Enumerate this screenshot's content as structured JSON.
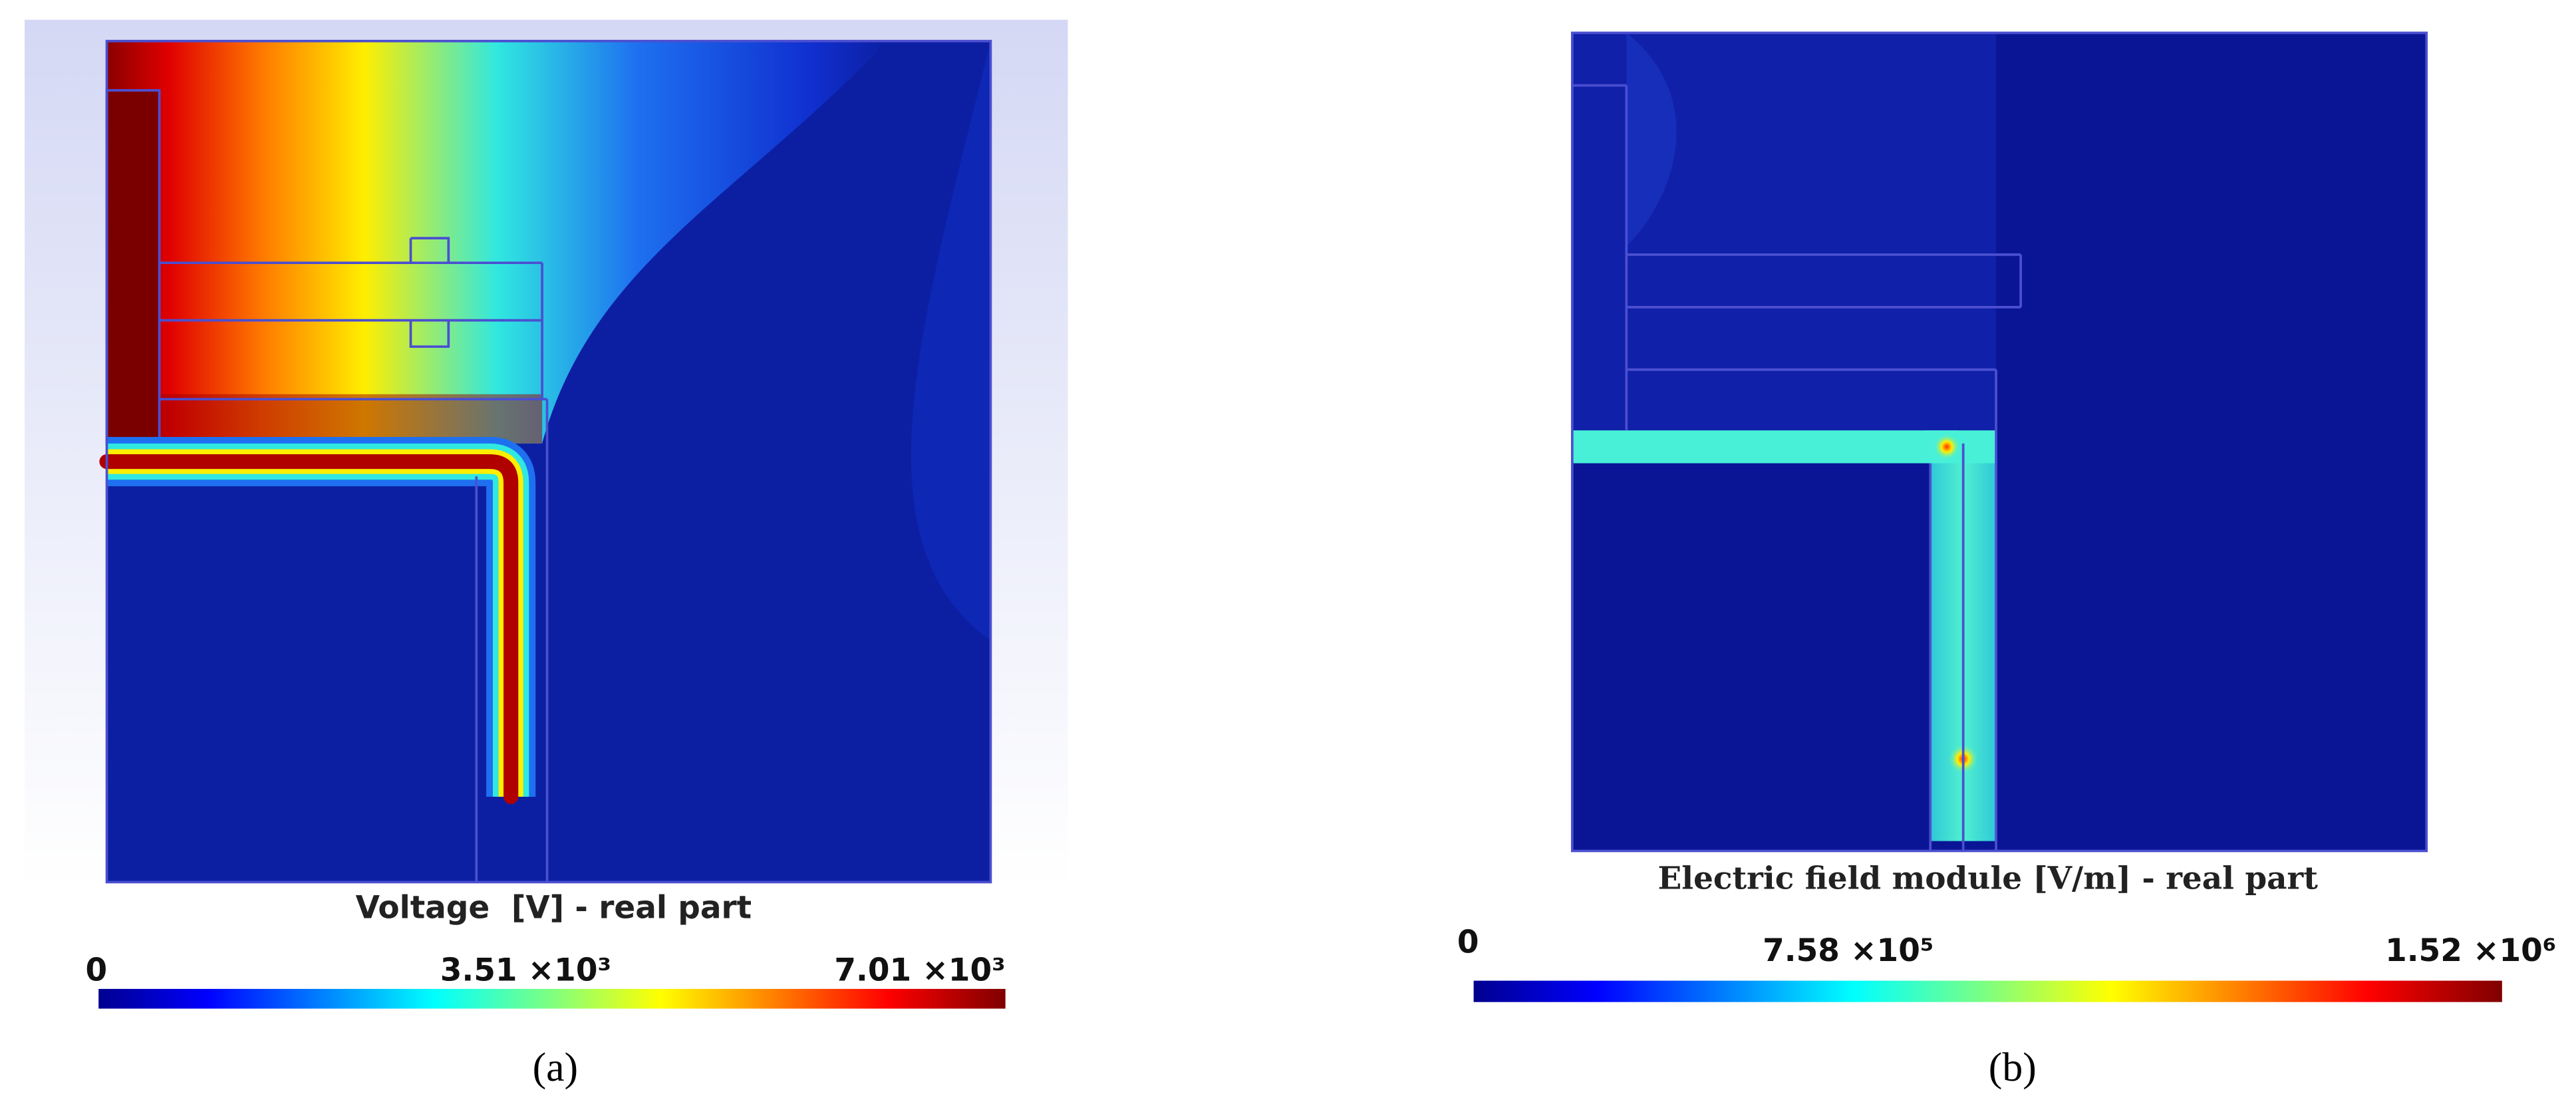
{
  "panels": [
    {
      "title": "Voltage  [V] - real part",
      "colorbar": {
        "labels": [
          "0",
          "3.51 ×10³",
          "7.01 ×10³"
        ]
      },
      "caption": "(a)"
    },
    {
      "title": "Electric field module [V/m] - real part",
      "colorbar": {
        "labels": [
          "0",
          "7.58 ×10⁵",
          "1.52 ×10⁶"
        ]
      },
      "caption": "(b)"
    }
  ]
}
